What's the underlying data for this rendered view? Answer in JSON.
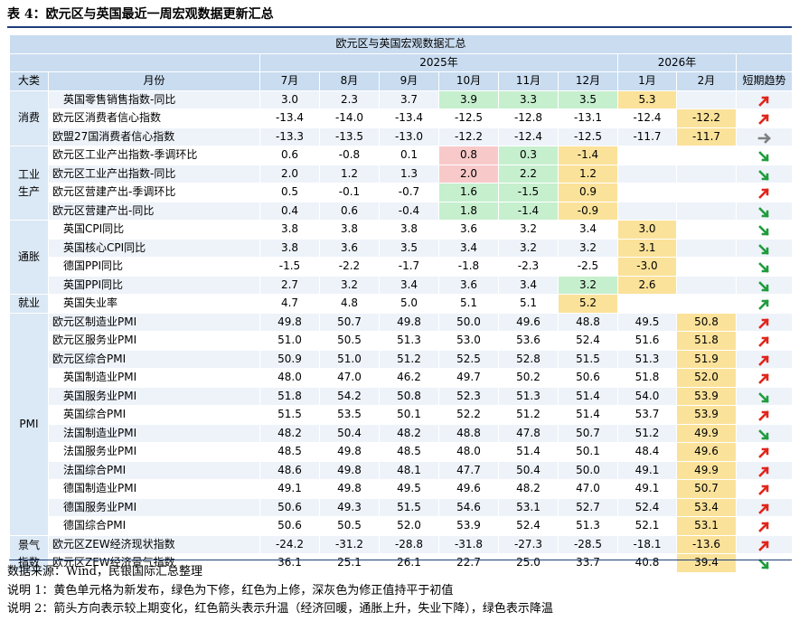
{
  "title": "表 4：欧元区与英国最近一周宏观数据更新汇总",
  "table_title": "欧元区与英国宏观数据汇总",
  "year_headers": {
    "y2025": "2025年",
    "y2026": "2026年"
  },
  "header": {
    "category": "大类",
    "month": "月份",
    "months": [
      "7月",
      "8月",
      "9月",
      "10月",
      "11月",
      "12月",
      "1月",
      "2月"
    ],
    "trend": "短期趋势"
  },
  "colors": {
    "yellow": "#fbe29a",
    "green": "#c6efce",
    "red": "#f8c9c9",
    "arrow_red": "#e0251b",
    "arrow_green": "#1f9c3c",
    "arrow_gray": "#7f7f7f"
  },
  "groups": [
    {
      "category": "消费",
      "rows": [
        {
          "name": "英国零售销售指数-同比",
          "indent": true,
          "values": [
            "3.0",
            "2.3",
            "3.7",
            "3.9",
            "3.3",
            "3.5",
            "5.3",
            ""
          ],
          "colors": [
            "",
            "",
            "",
            "green",
            "green",
            "green",
            "yellow",
            ""
          ],
          "trend": "up"
        },
        {
          "name": "欧元区消费者信心指数",
          "indent": false,
          "values": [
            "-13.4",
            "-14.0",
            "-13.4",
            "-12.5",
            "-12.8",
            "-13.1",
            "-12.4",
            "-12.2"
          ],
          "colors": [
            "",
            "",
            "",
            "",
            "",
            "",
            "",
            "yellow"
          ],
          "trend": "up"
        },
        {
          "name": "欧盟27国消费者信心指数",
          "indent": false,
          "values": [
            "-13.3",
            "-13.5",
            "-13.0",
            "-12.2",
            "-12.4",
            "-12.5",
            "-11.7",
            "-11.7"
          ],
          "colors": [
            "",
            "",
            "",
            "",
            "",
            "",
            "",
            "yellow"
          ],
          "trend": "flat"
        }
      ]
    },
    {
      "category": "工业生产",
      "rows": [
        {
          "name": "欧元区工业产出指数-季调环比",
          "indent": false,
          "values": [
            "0.6",
            "-0.8",
            "0.1",
            "0.8",
            "0.3",
            "-1.4",
            "",
            ""
          ],
          "colors": [
            "",
            "",
            "",
            "red",
            "green",
            "yellow",
            "",
            ""
          ],
          "trend": "down"
        },
        {
          "name": "欧元区工业产出指数-同比",
          "indent": false,
          "values": [
            "2.0",
            "1.2",
            "1.3",
            "2.0",
            "2.2",
            "1.2",
            "",
            ""
          ],
          "colors": [
            "",
            "",
            "",
            "red",
            "green",
            "yellow",
            "",
            ""
          ],
          "trend": "down"
        },
        {
          "name": "欧元区营建产出-季调环比",
          "indent": false,
          "values": [
            "0.5",
            "-0.1",
            "-0.7",
            "1.6",
            "-1.5",
            "0.9",
            "",
            ""
          ],
          "colors": [
            "",
            "",
            "",
            "green",
            "green",
            "yellow",
            "",
            ""
          ],
          "trend": "up"
        },
        {
          "name": "欧元区营建产出-同比",
          "indent": false,
          "values": [
            "0.4",
            "0.6",
            "-0.4",
            "1.8",
            "-1.4",
            "-0.9",
            "",
            ""
          ],
          "colors": [
            "",
            "",
            "",
            "green",
            "green",
            "yellow",
            "",
            ""
          ],
          "trend": "down"
        }
      ]
    },
    {
      "category": "通胀",
      "rows": [
        {
          "name": "英国CPI同比",
          "indent": true,
          "values": [
            "3.8",
            "3.8",
            "3.8",
            "3.6",
            "3.2",
            "3.4",
            "3.0",
            ""
          ],
          "colors": [
            "",
            "",
            "",
            "",
            "",
            "",
            "yellow",
            ""
          ],
          "trend": "down"
        },
        {
          "name": "英国核心CPI同比",
          "indent": true,
          "values": [
            "3.8",
            "3.6",
            "3.5",
            "3.4",
            "3.2",
            "3.2",
            "3.1",
            ""
          ],
          "colors": [
            "",
            "",
            "",
            "",
            "",
            "",
            "yellow",
            ""
          ],
          "trend": "down"
        },
        {
          "name": "德国PPI同比",
          "indent": true,
          "values": [
            "-1.5",
            "-2.2",
            "-1.7",
            "-1.8",
            "-2.3",
            "-2.5",
            "-3.0",
            ""
          ],
          "colors": [
            "",
            "",
            "",
            "",
            "",
            "",
            "yellow",
            ""
          ],
          "trend": "down"
        },
        {
          "name": "英国PPI同比",
          "indent": true,
          "values": [
            "2.7",
            "3.2",
            "3.4",
            "3.6",
            "3.4",
            "3.2",
            "2.6",
            ""
          ],
          "colors": [
            "",
            "",
            "",
            "",
            "",
            "green",
            "yellow",
            ""
          ],
          "trend": "down"
        }
      ]
    },
    {
      "category": "就业",
      "rows": [
        {
          "name": "英国失业率",
          "indent": true,
          "values": [
            "4.7",
            "4.8",
            "5.0",
            "5.1",
            "5.1",
            "5.2",
            "",
            ""
          ],
          "colors": [
            "",
            "",
            "",
            "",
            "",
            "yellow",
            "",
            ""
          ],
          "trend": "up_green"
        }
      ]
    },
    {
      "category": "PMI",
      "rows": [
        {
          "name": "欧元区制造业PMI",
          "indent": false,
          "values": [
            "49.8",
            "50.7",
            "49.8",
            "50.0",
            "49.6",
            "48.8",
            "49.5",
            "50.8"
          ],
          "colors": [
            "",
            "",
            "",
            "",
            "",
            "",
            "",
            "yellow"
          ],
          "trend": "up"
        },
        {
          "name": "欧元区服务业PMI",
          "indent": false,
          "values": [
            "51.0",
            "50.5",
            "51.3",
            "53.0",
            "53.6",
            "52.4",
            "51.6",
            "51.8"
          ],
          "colors": [
            "",
            "",
            "",
            "",
            "",
            "",
            "",
            "yellow"
          ],
          "trend": "up"
        },
        {
          "name": "欧元区综合PMI",
          "indent": false,
          "values": [
            "50.9",
            "51.0",
            "51.2",
            "52.5",
            "52.8",
            "51.5",
            "51.3",
            "51.9"
          ],
          "colors": [
            "",
            "",
            "",
            "",
            "",
            "",
            "",
            "yellow"
          ],
          "trend": "up"
        },
        {
          "name": "英国制造业PMI",
          "indent": true,
          "values": [
            "48.0",
            "47.0",
            "46.2",
            "49.7",
            "50.2",
            "50.6",
            "51.8",
            "52.0"
          ],
          "colors": [
            "",
            "",
            "",
            "",
            "",
            "",
            "",
            "yellow"
          ],
          "trend": "up"
        },
        {
          "name": "英国服务业PMI",
          "indent": true,
          "values": [
            "51.8",
            "54.2",
            "50.8",
            "52.3",
            "51.3",
            "51.4",
            "54.0",
            "53.9"
          ],
          "colors": [
            "",
            "",
            "",
            "",
            "",
            "",
            "",
            "yellow"
          ],
          "trend": "down"
        },
        {
          "name": "英国综合PMI",
          "indent": true,
          "values": [
            "51.5",
            "53.5",
            "50.1",
            "52.2",
            "51.2",
            "51.4",
            "53.7",
            "53.9"
          ],
          "colors": [
            "",
            "",
            "",
            "",
            "",
            "",
            "",
            "yellow"
          ],
          "trend": "up"
        },
        {
          "name": "法国制造业PMI",
          "indent": true,
          "values": [
            "48.2",
            "50.4",
            "48.2",
            "48.8",
            "47.8",
            "50.7",
            "51.2",
            "49.9"
          ],
          "colors": [
            "",
            "",
            "",
            "",
            "",
            "",
            "",
            "yellow"
          ],
          "trend": "down"
        },
        {
          "name": "法国服务业PMI",
          "indent": true,
          "values": [
            "48.5",
            "49.8",
            "48.5",
            "48.0",
            "51.4",
            "50.1",
            "48.4",
            "49.6"
          ],
          "colors": [
            "",
            "",
            "",
            "",
            "",
            "",
            "",
            "yellow"
          ],
          "trend": "up"
        },
        {
          "name": "法国综合PMI",
          "indent": true,
          "values": [
            "48.6",
            "49.8",
            "48.1",
            "47.7",
            "50.4",
            "50.0",
            "49.1",
            "49.9"
          ],
          "colors": [
            "",
            "",
            "",
            "",
            "",
            "",
            "",
            "yellow"
          ],
          "trend": "up"
        },
        {
          "name": "德国制造业PMI",
          "indent": true,
          "values": [
            "49.1",
            "49.8",
            "49.5",
            "49.6",
            "48.2",
            "47.0",
            "49.1",
            "50.7"
          ],
          "colors": [
            "",
            "",
            "",
            "",
            "",
            "",
            "",
            "yellow"
          ],
          "trend": "up"
        },
        {
          "name": "德国服务业PMI",
          "indent": true,
          "values": [
            "50.6",
            "49.3",
            "51.5",
            "54.6",
            "53.1",
            "52.7",
            "52.4",
            "53.4"
          ],
          "colors": [
            "",
            "",
            "",
            "",
            "",
            "",
            "",
            "yellow"
          ],
          "trend": "up"
        },
        {
          "name": "德国综合PMI",
          "indent": true,
          "values": [
            "50.6",
            "50.5",
            "52.0",
            "53.9",
            "52.4",
            "51.3",
            "52.1",
            "53.1"
          ],
          "colors": [
            "",
            "",
            "",
            "",
            "",
            "",
            "",
            "yellow"
          ],
          "trend": "up"
        }
      ]
    },
    {
      "category": "景气指数",
      "rows": [
        {
          "name": "欧元区ZEW经济现状指数",
          "indent": false,
          "values": [
            "-24.2",
            "-31.2",
            "-28.8",
            "-31.8",
            "-27.3",
            "-28.5",
            "-18.1",
            "-13.6"
          ],
          "colors": [
            "",
            "",
            "",
            "",
            "",
            "",
            "",
            "yellow"
          ],
          "trend": "up"
        },
        {
          "name": "欧元区ZEW经济景气指数",
          "indent": false,
          "values": [
            "36.1",
            "25.1",
            "26.1",
            "22.7",
            "25.0",
            "33.7",
            "40.8",
            "39.4"
          ],
          "colors": [
            "",
            "",
            "",
            "",
            "",
            "",
            "",
            "yellow"
          ],
          "trend": "down"
        }
      ]
    }
  ],
  "notes": [
    "数据来源：Wind，民银国际汇总整理",
    "说明 1：黄色单元格为新发布，绿色为下修，红色为上修，深灰色为修正值持平于初值",
    "说明 2：箭头方向表示较上期变化，红色箭头表示升温（经济回暖，通胀上升，失业下降），绿色表示降温"
  ]
}
